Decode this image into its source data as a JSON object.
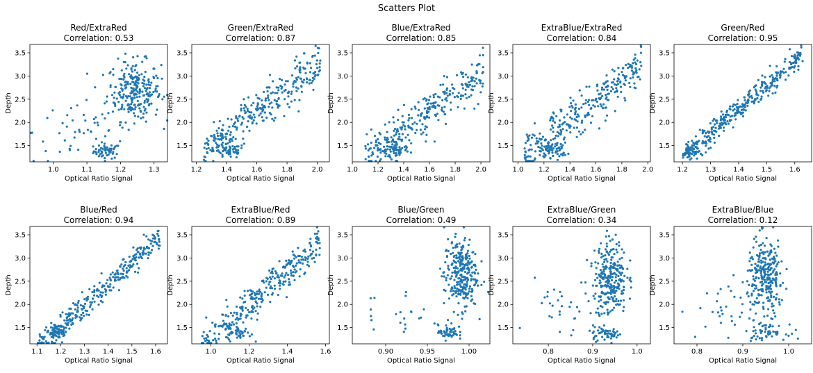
{
  "title": "Scatters Plot",
  "colors": {
    "marker": "#1f77b4",
    "axes": "#000000",
    "background": "#ffffff"
  },
  "chart_data": [
    {
      "type": "scatter",
      "title": "Red/ExtraRed",
      "correlation": "Correlation: 0.53",
      "xlabel": "Optical Ratio Signal",
      "ylabel": "Depth",
      "xlim": [
        0.93,
        1.34
      ],
      "ylim": [
        1.15,
        3.68
      ],
      "xticks": [
        1.0,
        1.1,
        1.2,
        1.3
      ],
      "xtick_labels": [
        "1.0",
        "1.1",
        "1.2",
        "1.3"
      ],
      "yticks": [
        1.5,
        2.0,
        2.5,
        3.0,
        3.5
      ],
      "ytick_labels": [
        "1.5",
        "2.0",
        "2.5",
        "3.0",
        "3.5"
      ],
      "clusters": [
        {
          "cx": 1.16,
          "cy": 1.38,
          "sx": 0.02,
          "sy": 0.08,
          "n": 55
        },
        {
          "cx": 1.24,
          "cy": 2.68,
          "sx": 0.04,
          "sy": 0.32,
          "n": 260
        },
        {
          "cx": 1.08,
          "cy": 1.8,
          "sx": 0.07,
          "sy": 0.35,
          "n": 45
        }
      ]
    },
    {
      "type": "scatter",
      "title": "Green/ExtraRed",
      "correlation": "Correlation: 0.87",
      "xlabel": "Optical Ratio Signal",
      "ylabel": "Depth",
      "xlim": [
        1.17,
        2.08
      ],
      "ylim": [
        1.15,
        3.68
      ],
      "xticks": [
        1.2,
        1.4,
        1.6,
        1.8,
        2.0
      ],
      "xtick_labels": [
        "1.2",
        "1.4",
        "1.6",
        "1.8",
        "2.0"
      ],
      "yticks": [
        1.5,
        2.0,
        2.5,
        3.0,
        3.5
      ],
      "ytick_labels": [
        "1.5",
        "2.0",
        "2.5",
        "3.0",
        "3.5"
      ],
      "slope": 2.3,
      "intercept": -1.45,
      "xrange": [
        1.25,
        2.02
      ],
      "noise": 0.22,
      "clusters": [
        {
          "cx": 1.42,
          "cy": 1.38,
          "sx": 0.05,
          "sy": 0.08,
          "n": 50
        }
      ],
      "n": 300
    },
    {
      "type": "scatter",
      "title": "Blue/ExtraRed",
      "correlation": "Correlation: 0.85",
      "xlabel": "Optical Ratio Signal",
      "ylabel": "Depth",
      "xlim": [
        1.0,
        2.07
      ],
      "ylim": [
        1.15,
        3.68
      ],
      "xticks": [
        1.0,
        1.2,
        1.4,
        1.6,
        1.8,
        2.0
      ],
      "xtick_labels": [
        "1.0",
        "1.2",
        "1.4",
        "1.6",
        "1.8",
        "2.0"
      ],
      "yticks": [
        1.5,
        2.0,
        2.5,
        3.0,
        3.5
      ],
      "ytick_labels": [
        "1.5",
        "2.0",
        "2.5",
        "3.0",
        "3.5"
      ],
      "slope": 2.0,
      "intercept": -0.95,
      "xrange": [
        1.1,
        2.02
      ],
      "noise": 0.22,
      "clusters": [
        {
          "cx": 1.35,
          "cy": 1.4,
          "sx": 0.05,
          "sy": 0.08,
          "n": 50
        }
      ],
      "n": 300
    },
    {
      "type": "scatter",
      "title": "ExtraBlue/ExtraRed",
      "correlation": "Correlation: 0.84",
      "xlabel": "Optical Ratio Signal",
      "ylabel": "Depth",
      "xlim": [
        0.96,
        2.02
      ],
      "ylim": [
        1.15,
        3.68
      ],
      "xticks": [
        1.0,
        1.2,
        1.4,
        1.6,
        1.8,
        2.0
      ],
      "xtick_labels": [
        "1.0",
        "1.2",
        "1.4",
        "1.6",
        "1.8",
        "2.0"
      ],
      "yticks": [
        1.5,
        2.0,
        2.5,
        3.0,
        3.5
      ],
      "ytick_labels": [
        "1.5",
        "2.0",
        "2.5",
        "3.0",
        "3.5"
      ],
      "slope": 2.1,
      "intercept": -0.9,
      "xrange": [
        1.05,
        1.95
      ],
      "noise": 0.22,
      "clusters": [
        {
          "cx": 1.28,
          "cy": 1.4,
          "sx": 0.05,
          "sy": 0.08,
          "n": 50
        }
      ],
      "n": 300
    },
    {
      "type": "scatter",
      "title": "Green/Red",
      "correlation": "Correlation: 0.95",
      "xlabel": "Optical Ratio Signal",
      "ylabel": "Depth",
      "xlim": [
        1.17,
        1.66
      ],
      "ylim": [
        1.15,
        3.68
      ],
      "xticks": [
        1.2,
        1.3,
        1.4,
        1.5,
        1.6
      ],
      "xtick_labels": [
        "1.2",
        "1.3",
        "1.4",
        "1.5",
        "1.6"
      ],
      "yticks": [
        1.5,
        2.0,
        2.5,
        3.0,
        3.5
      ],
      "ytick_labels": [
        "1.5",
        "2.0",
        "2.5",
        "3.0",
        "3.5"
      ],
      "slope": 5.2,
      "intercept": -5.0,
      "xrange": [
        1.2,
        1.63
      ],
      "noise": 0.12,
      "clusters": [
        {
          "cx": 1.23,
          "cy": 1.35,
          "sx": 0.015,
          "sy": 0.08,
          "n": 40
        }
      ],
      "n": 330
    },
    {
      "type": "scatter",
      "title": "Blue/Red",
      "correlation": "Correlation: 0.94",
      "xlabel": "Optical Ratio Signal",
      "ylabel": "Depth",
      "xlim": [
        1.07,
        1.65
      ],
      "ylim": [
        1.15,
        3.68
      ],
      "xticks": [
        1.1,
        1.2,
        1.3,
        1.4,
        1.5,
        1.6
      ],
      "xtick_labels": [
        "1.1",
        "1.2",
        "1.3",
        "1.4",
        "1.5",
        "1.6"
      ],
      "yticks": [
        1.5,
        2.0,
        2.5,
        3.0,
        3.5
      ],
      "ytick_labels": [
        "1.5",
        "2.0",
        "2.5",
        "3.0",
        "3.5"
      ],
      "slope": 4.6,
      "intercept": -4.0,
      "xrange": [
        1.1,
        1.62
      ],
      "noise": 0.13,
      "clusters": [
        {
          "cx": 1.19,
          "cy": 1.37,
          "sx": 0.02,
          "sy": 0.08,
          "n": 40
        }
      ],
      "n": 330
    },
    {
      "type": "scatter",
      "title": "ExtraBlue/Red",
      "correlation": "Correlation: 0.89",
      "xlabel": "Optical Ratio Signal",
      "ylabel": "Depth",
      "xlim": [
        0.9,
        1.62
      ],
      "ylim": [
        1.15,
        3.68
      ],
      "xticks": [
        1.0,
        1.2,
        1.4,
        1.6
      ],
      "xtick_labels": [
        "1.0",
        "1.2",
        "1.4",
        "1.6"
      ],
      "yticks": [
        1.5,
        2.0,
        2.5,
        3.0,
        3.5
      ],
      "ytick_labels": [
        "1.5",
        "2.0",
        "2.5",
        "3.0",
        "3.5"
      ],
      "slope": 3.5,
      "intercept": -2.2,
      "xrange": [
        0.95,
        1.57
      ],
      "noise": 0.2,
      "clusters": [
        {
          "cx": 1.15,
          "cy": 1.37,
          "sx": 0.03,
          "sy": 0.08,
          "n": 45
        }
      ],
      "n": 300
    },
    {
      "type": "scatter",
      "title": "Blue/Green",
      "correlation": "Correlation: 0.49",
      "xlabel": "Optical Ratio Signal",
      "ylabel": "Depth",
      "xlim": [
        0.86,
        1.025
      ],
      "ylim": [
        1.15,
        3.68
      ],
      "xticks": [
        0.9,
        0.95,
        1.0
      ],
      "xtick_labels": [
        "0.90",
        "0.95",
        "1.00"
      ],
      "yticks": [
        1.5,
        2.0,
        2.5,
        3.0,
        3.5
      ],
      "ytick_labels": [
        "1.5",
        "2.0",
        "2.5",
        "3.0",
        "3.5"
      ],
      "clusters": [
        {
          "cx": 0.99,
          "cy": 2.65,
          "sx": 0.01,
          "sy": 0.38,
          "n": 280
        },
        {
          "cx": 0.975,
          "cy": 1.4,
          "sx": 0.006,
          "sy": 0.08,
          "n": 50
        },
        {
          "cx": 0.92,
          "cy": 1.8,
          "sx": 0.025,
          "sy": 0.3,
          "n": 22
        }
      ]
    },
    {
      "type": "scatter",
      "title": "ExtraBlue/Green",
      "correlation": "Correlation: 0.34",
      "xlabel": "Optical Ratio Signal",
      "ylabel": "Depth",
      "xlim": [
        0.72,
        1.03
      ],
      "ylim": [
        1.15,
        3.68
      ],
      "xticks": [
        0.8,
        0.9,
        1.0
      ],
      "xtick_labels": [
        "0.8",
        "0.9",
        "1.0"
      ],
      "yticks": [
        1.5,
        2.0,
        2.5,
        3.0,
        3.5
      ],
      "ytick_labels": [
        "1.5",
        "2.0",
        "2.5",
        "3.0",
        "3.5"
      ],
      "clusters": [
        {
          "cx": 0.94,
          "cy": 2.6,
          "sx": 0.018,
          "sy": 0.4,
          "n": 270
        },
        {
          "cx": 0.93,
          "cy": 1.38,
          "sx": 0.02,
          "sy": 0.08,
          "n": 50
        },
        {
          "cx": 0.85,
          "cy": 1.8,
          "sx": 0.04,
          "sy": 0.35,
          "n": 40
        }
      ]
    },
    {
      "type": "scatter",
      "title": "ExtraBlue/Blue",
      "correlation": "Correlation: 0.12",
      "xlabel": "Optical Ratio Signal",
      "ylabel": "Depth",
      "xlim": [
        0.75,
        1.05
      ],
      "ylim": [
        1.15,
        3.68
      ],
      "xticks": [
        0.8,
        0.9,
        1.0
      ],
      "xtick_labels": [
        "0.8",
        "0.9",
        "1.0"
      ],
      "yticks": [
        1.5,
        2.0,
        2.5,
        3.0,
        3.5
      ],
      "ytick_labels": [
        "1.5",
        "2.0",
        "2.5",
        "3.0",
        "3.5"
      ],
      "clusters": [
        {
          "cx": 0.95,
          "cy": 2.6,
          "sx": 0.02,
          "sy": 0.4,
          "n": 270
        },
        {
          "cx": 0.95,
          "cy": 1.4,
          "sx": 0.022,
          "sy": 0.08,
          "n": 55
        },
        {
          "cx": 0.88,
          "cy": 1.9,
          "sx": 0.04,
          "sy": 0.35,
          "n": 35
        }
      ]
    }
  ]
}
